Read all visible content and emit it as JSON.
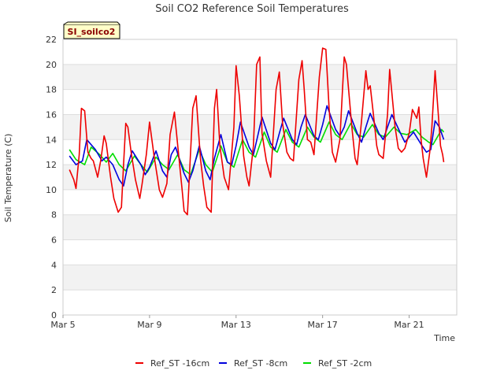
{
  "chart_data": {
    "type": "line",
    "title": "Soil CO2 Reference Soil Temperatures",
    "xlabel": "Time",
    "ylabel": "Soil Temperature (C)",
    "ylim": [
      0,
      22
    ],
    "yticks": [
      0,
      2,
      4,
      6,
      8,
      10,
      12,
      14,
      16,
      18,
      20,
      22
    ],
    "xlim": [
      5,
      23.2
    ],
    "xticks": [
      {
        "value": 5,
        "label": "Mar 5"
      },
      {
        "value": 9,
        "label": "Mar 9"
      },
      {
        "value": 13,
        "label": "Mar 13"
      },
      {
        "value": 17,
        "label": "Mar 17"
      },
      {
        "value": 21,
        "label": "Mar 21"
      }
    ],
    "grid": "horizontal alternating bands",
    "legend_position": "bottom",
    "badge": "SI_soilco2",
    "series": [
      {
        "name": "Ref_ST -16cm",
        "color": "#ee0000",
        "x": [
          5.3,
          5.5,
          5.6,
          5.75,
          5.85,
          6.0,
          6.15,
          6.3,
          6.4,
          6.6,
          6.75,
          6.9,
          7.0,
          7.2,
          7.35,
          7.55,
          7.7,
          7.8,
          7.9,
          8.0,
          8.15,
          8.35,
          8.55,
          8.65,
          8.85,
          9.0,
          9.2,
          9.45,
          9.6,
          9.8,
          9.95,
          10.15,
          10.4,
          10.5,
          10.6,
          10.75,
          11.0,
          11.15,
          11.35,
          11.5,
          11.65,
          11.85,
          12.0,
          12.1,
          12.25,
          12.45,
          12.65,
          12.9,
          13.0,
          13.15,
          13.35,
          13.5,
          13.6,
          13.8,
          13.95,
          14.1,
          14.2,
          14.4,
          14.6,
          14.85,
          15.0,
          15.15,
          15.35,
          15.5,
          15.65,
          15.9,
          16.05,
          16.15,
          16.3,
          16.45,
          16.6,
          16.85,
          17.0,
          17.15,
          17.3,
          17.45,
          17.6,
          17.8,
          18.0,
          18.1,
          18.35,
          18.5,
          18.6,
          18.8,
          19.0,
          19.1,
          19.2,
          19.35,
          19.5,
          19.6,
          19.8,
          20.0,
          20.1,
          20.35,
          20.5,
          20.65,
          20.8,
          21.0,
          21.15,
          21.35,
          21.45,
          21.55,
          21.65,
          21.8,
          21.95,
          22.05,
          22.2,
          22.35,
          22.45,
          22.55,
          22.6
        ],
        "values": [
          11.6,
          10.8,
          10.1,
          12.8,
          16.5,
          16.3,
          13.0,
          12.5,
          12.3,
          11.0,
          12.4,
          14.3,
          13.7,
          11.0,
          9.3,
          8.2,
          8.6,
          12.0,
          15.3,
          15.0,
          13.0,
          10.8,
          9.3,
          10.4,
          12.8,
          15.4,
          12.8,
          10.0,
          9.4,
          10.5,
          14.4,
          16.2,
          11.8,
          10.1,
          8.3,
          8.0,
          16.5,
          17.5,
          12.5,
          10.3,
          8.6,
          8.2,
          16.5,
          18.0,
          13.5,
          11.0,
          10.0,
          15.0,
          19.9,
          17.5,
          12.7,
          11.0,
          10.3,
          13.5,
          20.0,
          20.6,
          14.5,
          12.3,
          11.0,
          18.0,
          19.4,
          15.3,
          13.0,
          12.5,
          12.3,
          18.8,
          20.3,
          18.0,
          14.0,
          13.8,
          12.8,
          19.0,
          21.3,
          21.2,
          16.5,
          13.0,
          12.2,
          14.0,
          20.6,
          20.0,
          15.0,
          12.5,
          12.0,
          15.5,
          19.5,
          18.0,
          18.3,
          16.0,
          13.5,
          12.8,
          12.5,
          16.0,
          19.6,
          15.0,
          13.3,
          13.0,
          13.3,
          14.5,
          16.4,
          15.7,
          16.6,
          14.0,
          12.5,
          11.0,
          13.0,
          15.0,
          19.5,
          16.0,
          13.5,
          12.8,
          12.2
        ]
      },
      {
        "name": "Ref_ST -8cm",
        "color": "#0000dd",
        "x": [
          5.3,
          5.6,
          5.9,
          6.1,
          6.5,
          6.8,
          7.0,
          7.3,
          7.6,
          7.8,
          8.0,
          8.2,
          8.6,
          8.8,
          9.0,
          9.3,
          9.6,
          9.8,
          10.0,
          10.2,
          10.6,
          10.8,
          11.0,
          11.3,
          11.6,
          11.8,
          12.0,
          12.3,
          12.6,
          12.8,
          13.0,
          13.2,
          13.6,
          13.8,
          14.0,
          14.2,
          14.6,
          14.8,
          15.0,
          15.2,
          15.6,
          15.8,
          16.0,
          16.2,
          16.6,
          16.8,
          17.0,
          17.2,
          17.6,
          17.8,
          18.0,
          18.2,
          18.6,
          18.8,
          19.0,
          19.2,
          19.6,
          19.8,
          20.0,
          20.2,
          20.6,
          20.8,
          21.0,
          21.2,
          21.6,
          21.8,
          22.0,
          22.2,
          22.4,
          22.6
        ],
        "values": [
          12.7,
          12.0,
          12.3,
          14.0,
          13.2,
          12.3,
          12.6,
          12.0,
          10.8,
          10.3,
          12.0,
          13.1,
          12.0,
          11.2,
          11.8,
          13.1,
          11.5,
          11.0,
          12.8,
          13.4,
          11.3,
          10.6,
          11.5,
          13.5,
          11.5,
          10.8,
          12.5,
          14.4,
          12.2,
          12.0,
          13.5,
          15.4,
          13.4,
          12.8,
          14.3,
          15.8,
          13.7,
          13.2,
          14.5,
          15.7,
          14.0,
          13.6,
          15.0,
          16.0,
          14.3,
          14.0,
          15.2,
          16.7,
          14.8,
          14.3,
          15.0,
          16.3,
          14.5,
          13.8,
          15.0,
          16.1,
          14.5,
          14.0,
          15.0,
          16.0,
          14.5,
          13.8,
          14.2,
          14.6,
          13.5,
          13.0,
          13.2,
          15.5,
          15.0,
          14.0
        ]
      },
      {
        "name": "Ref_ST -2cm",
        "color": "#00dd00",
        "x": [
          5.3,
          5.6,
          6.0,
          6.3,
          6.7,
          7.0,
          7.3,
          7.6,
          7.9,
          8.3,
          8.6,
          8.9,
          9.3,
          9.6,
          9.9,
          10.3,
          10.6,
          10.9,
          11.3,
          11.6,
          11.9,
          12.3,
          12.6,
          12.9,
          13.3,
          13.6,
          13.9,
          14.3,
          14.6,
          14.9,
          15.3,
          15.6,
          15.9,
          16.3,
          16.6,
          16.9,
          17.3,
          17.6,
          17.9,
          18.3,
          18.6,
          18.9,
          19.3,
          19.6,
          19.9,
          20.3,
          20.6,
          20.9,
          21.3,
          21.6,
          21.9,
          22.1,
          22.3,
          22.5,
          22.6
        ],
        "values": [
          13.2,
          12.4,
          12.0,
          13.4,
          12.8,
          12.2,
          12.9,
          12.0,
          11.5,
          12.7,
          12.0,
          11.4,
          12.6,
          12.0,
          11.6,
          12.8,
          11.6,
          11.2,
          13.2,
          12.0,
          11.4,
          13.5,
          12.2,
          11.8,
          14.0,
          13.0,
          12.6,
          14.6,
          13.4,
          13.0,
          14.8,
          13.8,
          13.4,
          15.0,
          14.2,
          13.8,
          15.4,
          14.4,
          14.0,
          15.3,
          14.4,
          14.2,
          15.2,
          14.4,
          14.2,
          15.0,
          14.5,
          14.4,
          14.8,
          14.2,
          13.8,
          13.6,
          14.2,
          14.8,
          14.6
        ]
      }
    ]
  }
}
